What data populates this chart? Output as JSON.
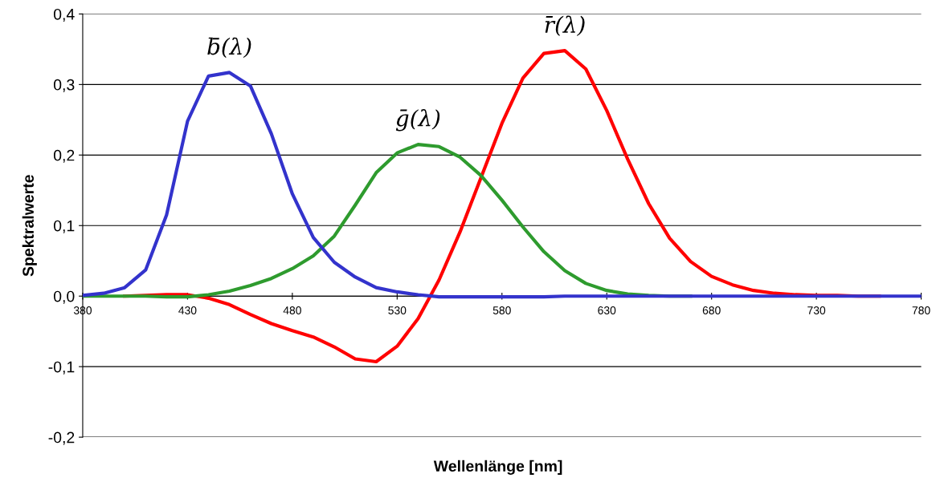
{
  "chart_data": {
    "type": "line",
    "xlabel": "Wellenlänge [nm]",
    "ylabel": "Spektralwerte",
    "x": [
      380,
      390,
      400,
      410,
      420,
      430,
      440,
      450,
      460,
      470,
      480,
      490,
      500,
      510,
      520,
      530,
      540,
      550,
      560,
      570,
      580,
      590,
      600,
      610,
      620,
      630,
      640,
      650,
      660,
      670,
      680,
      690,
      700,
      710,
      720,
      730,
      740,
      750,
      760,
      770,
      780
    ],
    "series": [
      {
        "name": "r̄(λ)",
        "color": "#ff0000",
        "values": [
          null,
          null,
          0.0,
          0.001,
          0.002,
          0.002,
          -0.003,
          -0.012,
          -0.026,
          -0.039,
          -0.049,
          -0.058,
          -0.072,
          -0.089,
          -0.093,
          -0.071,
          -0.032,
          0.023,
          0.091,
          0.168,
          0.245,
          0.309,
          0.344,
          0.348,
          0.322,
          0.263,
          0.194,
          0.131,
          0.082,
          0.049,
          0.028,
          0.016,
          0.008,
          0.004,
          0.002,
          0.001,
          0.001,
          0.0,
          0.0,
          null,
          null
        ]
      },
      {
        "name": "ḡ(λ)",
        "color": "#2e9b2e",
        "values": [
          0.0,
          0.0,
          0.0,
          0.0,
          -0.001,
          -0.001,
          0.002,
          0.007,
          0.015,
          0.025,
          0.039,
          0.057,
          0.085,
          0.129,
          0.175,
          0.203,
          0.215,
          0.212,
          0.197,
          0.171,
          0.136,
          0.098,
          0.063,
          0.036,
          0.018,
          0.008,
          0.003,
          0.001,
          0.0,
          0.0,
          null,
          null,
          null,
          null,
          null,
          null,
          null,
          null,
          null,
          null,
          null
        ]
      },
      {
        "name": "b̄(λ)",
        "color": "#3333cc",
        "values": [
          0.001,
          0.004,
          0.012,
          0.037,
          0.115,
          0.248,
          0.312,
          0.317,
          0.298,
          0.23,
          0.145,
          0.083,
          0.048,
          0.027,
          0.012,
          0.006,
          0.002,
          -0.001,
          -0.001,
          -0.001,
          -0.001,
          -0.001,
          -0.001,
          0.0,
          0.0,
          0.0,
          0.0,
          0.0,
          0.0,
          0.0,
          0.0,
          0.0,
          0.0,
          0.0,
          0.0,
          0.0,
          0.0,
          0.0,
          0.0,
          0.0,
          0.0
        ]
      }
    ],
    "xlim": [
      380,
      780
    ],
    "xticks": [
      380,
      430,
      480,
      530,
      580,
      630,
      680,
      730,
      780
    ],
    "ylim": [
      -0.2,
      0.4
    ],
    "yticks": [
      {
        "value": -0.2,
        "label": "-0,2"
      },
      {
        "value": -0.1,
        "label": "-0,1"
      },
      {
        "value": 0.0,
        "label": "0,0"
      },
      {
        "value": 0.1,
        "label": "0,1"
      },
      {
        "value": 0.2,
        "label": "0,2"
      },
      {
        "value": 0.3,
        "label": "0,3"
      },
      {
        "value": 0.4,
        "label": "0,4"
      }
    ],
    "grid": "y",
    "legend": false,
    "marker": "none",
    "line_style": "solid"
  }
}
